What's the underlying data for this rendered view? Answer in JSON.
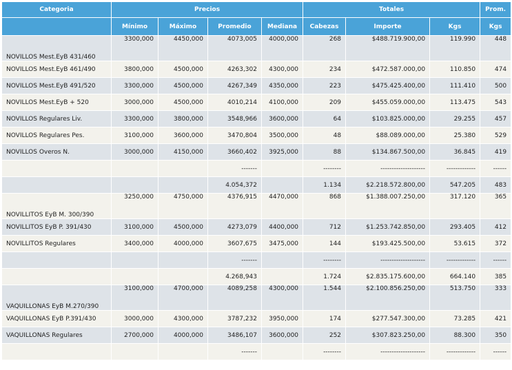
{
  "header": {
    "categoria": "Categoria",
    "precios": "Precios",
    "totales": "Totales",
    "prom": "Prom.",
    "minimo": "Mínimo",
    "maximo": "Máximo",
    "promedio": "Promedio",
    "mediana": "Mediana",
    "cabezas": "Cabezas",
    "importe": "Importe",
    "kgs": "Kgs",
    "prom_kgs": "Kgs"
  },
  "rows": [
    {
      "cat": "NOVILLOS Mest.EyB 431/460",
      "min": "3300,000",
      "max": "4450,000",
      "prom": "4073,005",
      "med": "4000,000",
      "cab": "268",
      "imp": "$488.719.900,00",
      "kgs": "119.990",
      "pk": "448"
    },
    {
      "cat": "NOVILLOS Mest.EyB 461/490",
      "min": "3800,000",
      "max": "4500,000",
      "prom": "4263,302",
      "med": "4300,000",
      "cab": "234",
      "imp": "$472.587.000,00",
      "kgs": "110.850",
      "pk": "474"
    },
    {
      "cat": "NOVILLOS Mest.EyB 491/520",
      "min": "3300,000",
      "max": "4500,000",
      "prom": "4267,349",
      "med": "4350,000",
      "cab": "223",
      "imp": "$475.425.400,00",
      "kgs": "111.410",
      "pk": "500"
    },
    {
      "cat": "NOVILLOS Mest.EyB + 520",
      "min": "3000,000",
      "max": "4500,000",
      "prom": "4010,214",
      "med": "4100,000",
      "cab": "209",
      "imp": "$455.059.000,00",
      "kgs": "113.475",
      "pk": "543"
    },
    {
      "cat": "NOVILLOS Regulares Liv.",
      "min": "3300,000",
      "max": "3800,000",
      "prom": "3548,966",
      "med": "3600,000",
      "cab": "64",
      "imp": "$103.825.000,00",
      "kgs": "29.255",
      "pk": "457"
    },
    {
      "cat": "NOVILLOS Regulares Pes.",
      "min": "3100,000",
      "max": "3600,000",
      "prom": "3470,804",
      "med": "3500,000",
      "cab": "48",
      "imp": "$88.089.000,00",
      "kgs": "25.380",
      "pk": "529"
    },
    {
      "cat": "NOVILLOS Overos N.",
      "min": "3000,000",
      "max": "4150,000",
      "prom": "3660,402",
      "med": "3925,000",
      "cab": "88",
      "imp": "$134.867.500,00",
      "kgs": "36.845",
      "pk": "419"
    }
  ],
  "dash_short": "-------",
  "dash_cab": "--------",
  "dash_imp": "--------------------",
  "dash_kgs": "-------------",
  "dash_pk": "------",
  "subtotal1": {
    "prom": "4.054,372",
    "cab": "1.134",
    "imp": "$2.218.572.800,00",
    "kgs": "547.205",
    "pk": "483"
  },
  "rows2": [
    {
      "cat": "NOVILLITOS EyB M. 300/390",
      "min": "3250,000",
      "max": "4750,000",
      "prom": "4376,915",
      "med": "4470,000",
      "cab": "868",
      "imp": "$1.388.007.250,00",
      "kgs": "317.120",
      "pk": "365"
    },
    {
      "cat": "NOVILLITOS EyB P. 391/430",
      "min": "3100,000",
      "max": "4500,000",
      "prom": "4273,079",
      "med": "4400,000",
      "cab": "712",
      "imp": "$1.253.742.850,00",
      "kgs": "293.405",
      "pk": "412"
    },
    {
      "cat": "NOVILLITOS Regulares",
      "min": "3400,000",
      "max": "4000,000",
      "prom": "3607,675",
      "med": "3475,000",
      "cab": "144",
      "imp": "$193.425.500,00",
      "kgs": "53.615",
      "pk": "372"
    }
  ],
  "subtotal2": {
    "prom": "4.268,943",
    "cab": "1.724",
    "imp": "$2.835.175.600,00",
    "kgs": "664.140",
    "pk": "385"
  },
  "rows3": [
    {
      "cat": "VAQUILLONAS EyB M.270/390",
      "min": "3100,000",
      "max": "4700,000",
      "prom": "4089,258",
      "med": "4300,000",
      "cab": "1.544",
      "imp": "$2.100.856.250,00",
      "kgs": "513.750",
      "pk": "333"
    },
    {
      "cat": "VAQUILLONAS EyB P.391/430",
      "min": "3000,000",
      "max": "4300,000",
      "prom": "3787,232",
      "med": "3950,000",
      "cab": "174",
      "imp": "$277.547.300,00",
      "kgs": "73.285",
      "pk": "421"
    },
    {
      "cat": "VAQUILLONAS Regulares",
      "min": "2700,000",
      "max": "4000,000",
      "prom": "3486,107",
      "med": "3600,000",
      "cab": "252",
      "imp": "$307.823.250,00",
      "kgs": "88.300",
      "pk": "350"
    }
  ]
}
